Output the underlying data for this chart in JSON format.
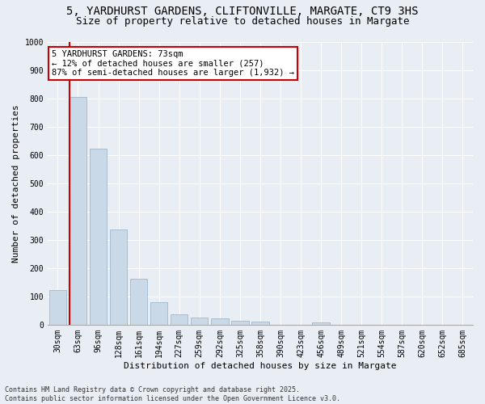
{
  "title_line1": "5, YARDHURST GARDENS, CLIFTONVILLE, MARGATE, CT9 3HS",
  "title_line2": "Size of property relative to detached houses in Margate",
  "xlabel": "Distribution of detached houses by size in Margate",
  "ylabel": "Number of detached properties",
  "bar_color": "#c9d9e8",
  "bar_edge_color": "#a0b8cc",
  "vline_color": "#cc0000",
  "vline_x_idx": 1,
  "annotation_text": "5 YARDHURST GARDENS: 73sqm\n← 12% of detached houses are smaller (257)\n87% of semi-detached houses are larger (1,932) →",
  "annotation_box_color": "#ffffff",
  "annotation_box_edge": "#cc0000",
  "categories": [
    "30sqm",
    "63sqm",
    "96sqm",
    "128sqm",
    "161sqm",
    "194sqm",
    "227sqm",
    "259sqm",
    "292sqm",
    "325sqm",
    "358sqm",
    "390sqm",
    "423sqm",
    "456sqm",
    "489sqm",
    "521sqm",
    "554sqm",
    "587sqm",
    "620sqm",
    "652sqm",
    "685sqm"
  ],
  "values": [
    122,
    805,
    622,
    336,
    163,
    80,
    37,
    24,
    22,
    15,
    12,
    0,
    0,
    7,
    0,
    0,
    0,
    0,
    0,
    0,
    0
  ],
  "ylim": [
    0,
    1000
  ],
  "yticks": [
    0,
    100,
    200,
    300,
    400,
    500,
    600,
    700,
    800,
    900,
    1000
  ],
  "background_color": "#e8eef4",
  "plot_bg_color": "#e8eef4",
  "footer_line1": "Contains HM Land Registry data © Crown copyright and database right 2025.",
  "footer_line2": "Contains public sector information licensed under the Open Government Licence v3.0.",
  "title_fontsize": 10,
  "subtitle_fontsize": 9,
  "axis_label_fontsize": 8,
  "tick_fontsize": 7,
  "annotation_fontsize": 7.5,
  "footer_fontsize": 6
}
